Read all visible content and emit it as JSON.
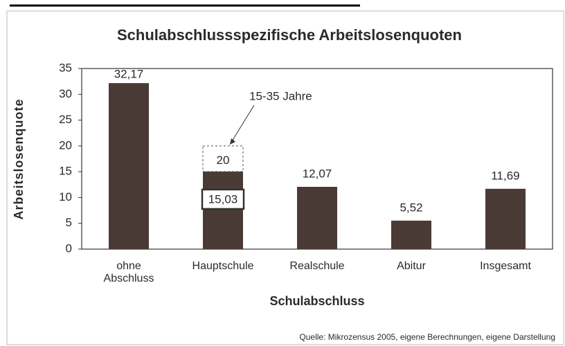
{
  "chart_data": {
    "type": "bar",
    "title": "Schulabschlussspezifische Arbeitslosenquoten",
    "x_label": "Schulabschluss",
    "y_label": "Arbeitslosenquote",
    "categories": [
      "ohne Abschluss",
      "Hauptschule",
      "Realschule",
      "Abitur",
      "Insgesamt"
    ],
    "values": [
      32.17,
      15.03,
      12.07,
      5.52,
      11.69
    ],
    "value_labels": [
      "32,17",
      "15,03",
      "12,07",
      "5,52",
      "11,69"
    ],
    "color": "#4a3a36",
    "ylim": [
      0,
      35
    ],
    "yticks": [
      0,
      5,
      10,
      15,
      20,
      25,
      30,
      35
    ],
    "annotation": {
      "label": "15-35 Jahre",
      "value": 20,
      "value_label": "20"
    },
    "source": "Quelle: Mikrozensus 2005, eigene Berechnungen, eigene Darstellung"
  }
}
